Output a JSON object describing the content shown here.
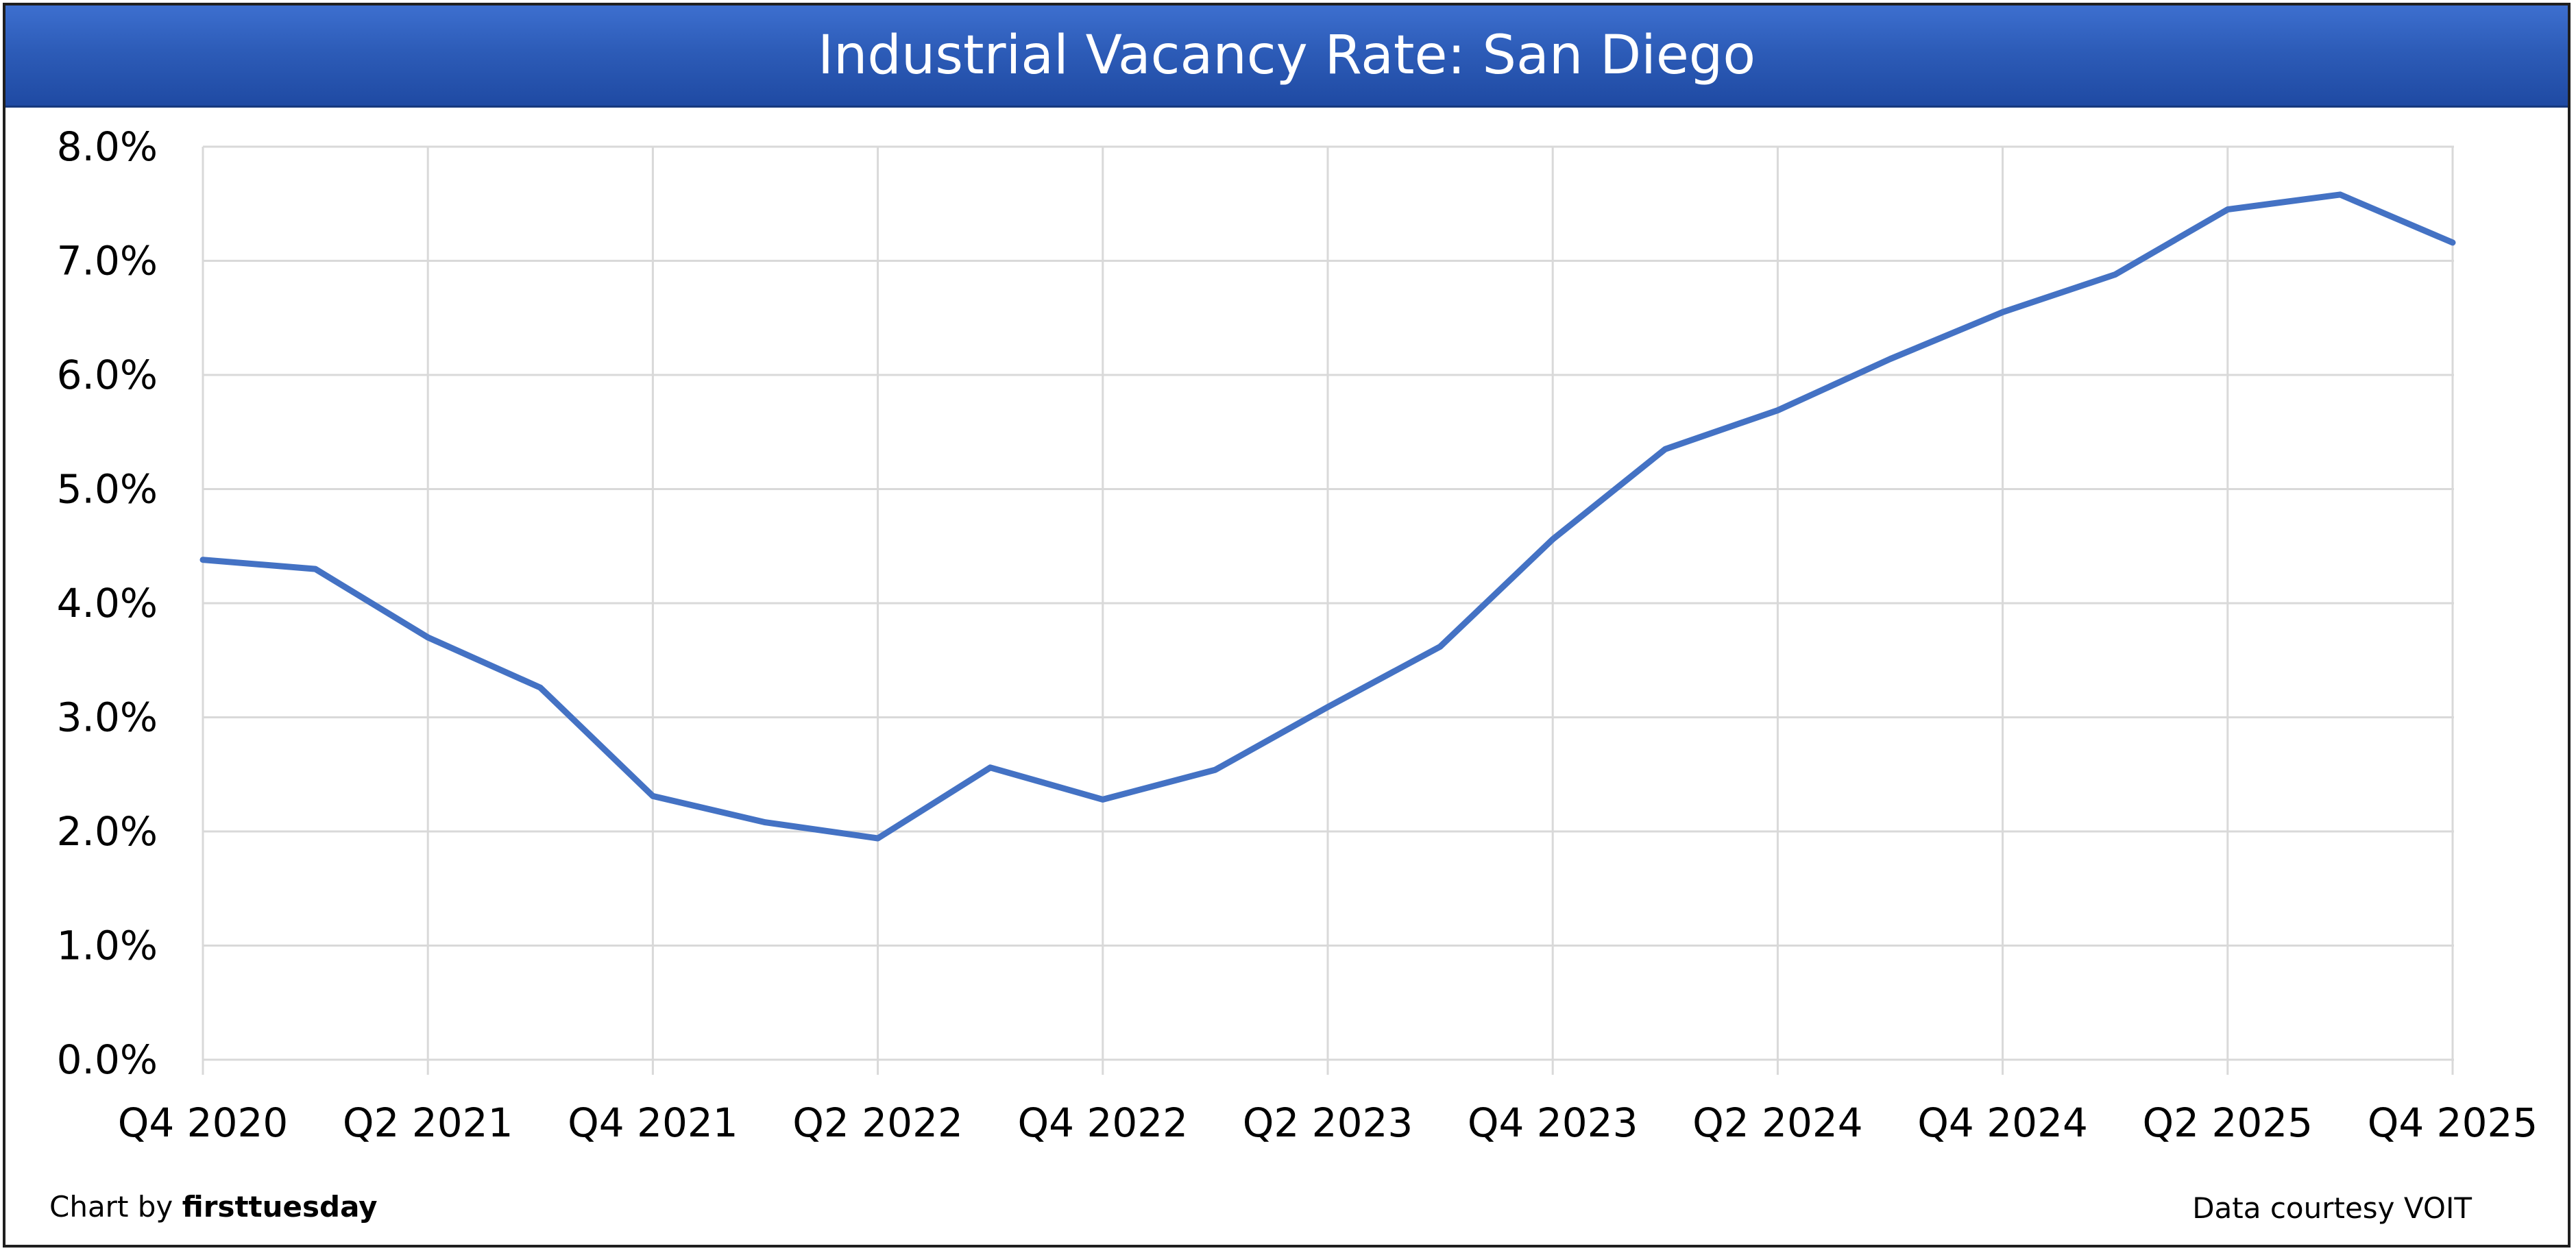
{
  "chart_data": {
    "type": "line",
    "title": "Industrial Vacancy Rate: San Diego",
    "xlabel": "",
    "ylabel": "",
    "ylim": [
      0,
      8
    ],
    "y_ticks": [
      "0.0%",
      "1.0%",
      "2.0%",
      "3.0%",
      "4.0%",
      "5.0%",
      "6.0%",
      "7.0%",
      "8.0%"
    ],
    "x": [
      "Q4 2020",
      "Q1 2021",
      "Q2 2021",
      "Q3 2021",
      "Q4 2021",
      "Q1 2022",
      "Q2 2022",
      "Q3 2022",
      "Q4 2022",
      "Q1 2023",
      "Q2 2023",
      "Q3 2023",
      "Q4 2023",
      "Q1 2024",
      "Q2 2024",
      "Q3 2024",
      "Q4 2024",
      "Q1 2025",
      "Q2 2025",
      "Q3 2025",
      "Q4 2025"
    ],
    "x_tick_labels": [
      "Q4 2020",
      "Q2 2021",
      "Q4 2021",
      "Q2 2022",
      "Q4 2022",
      "Q2 2023",
      "Q4 2023",
      "Q2 2024",
      "Q4 2024",
      "Q2 2025",
      "Q4 2025"
    ],
    "series": [
      {
        "values": [
          4.38,
          4.3,
          3.7,
          3.26,
          2.31,
          2.08,
          1.94,
          2.56,
          2.28,
          2.54,
          3.09,
          3.62,
          4.56,
          5.35,
          5.69,
          6.14,
          6.55,
          6.88,
          7.45,
          7.58,
          7.16
        ]
      }
    ],
    "grid": true,
    "legend": "none",
    "line_color": "#4472c4",
    "gridline_color": "#d9d9d9"
  },
  "footer": {
    "credit_prefix": "Chart by ",
    "credit_brand": "firsttuesday",
    "source": "Data courtesy VOIT"
  },
  "colors": {
    "title_bar": "#2d5cb8",
    "title_text": "#ffffff"
  }
}
